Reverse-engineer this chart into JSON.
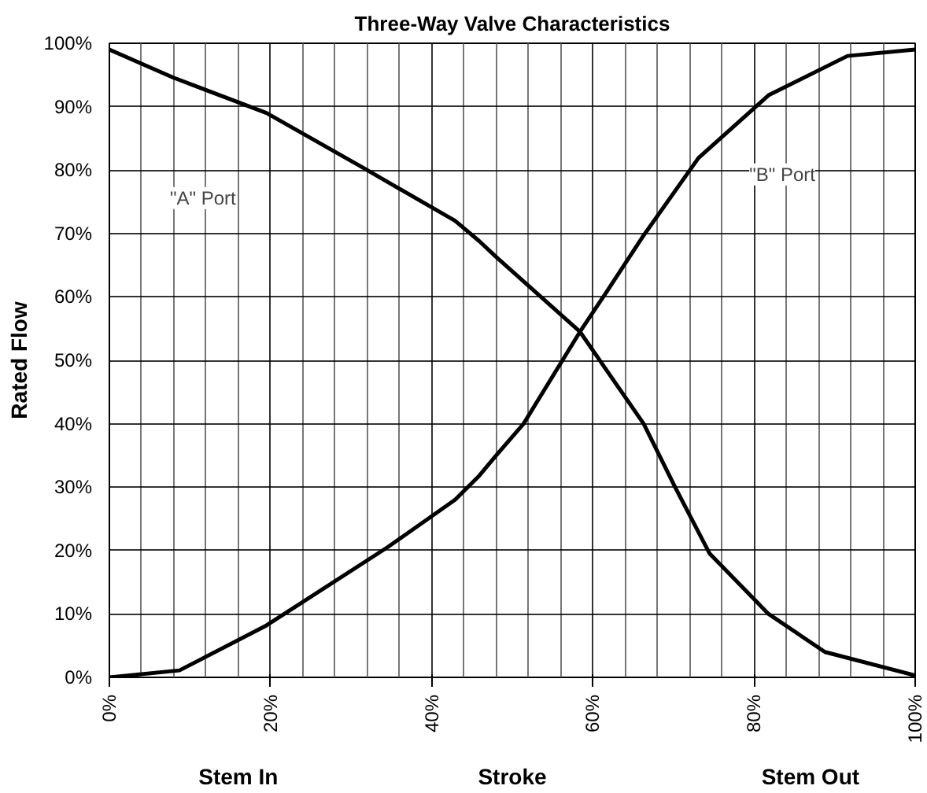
{
  "chart_data": {
    "type": "line",
    "title": "Three-Way Valve Characteristics",
    "xlabel": "Stroke",
    "ylabel": "Rated Flow",
    "series": [
      {
        "color": "#000000",
        "x": [
          0,
          7.9,
          19.5,
          31.3,
          42.9,
          45.9,
          48,
          58.4,
          66.3,
          70.2,
          74.5,
          81.8,
          88.8,
          100
        ],
        "values": [
          99,
          94.6,
          89,
          80.5,
          72,
          68.8,
          66.3,
          54.5,
          40,
          30,
          19.5,
          10,
          4,
          0.3
        ]
      },
      {
        "color": "#000000",
        "x": [
          0,
          8.7,
          19.5,
          34.5,
          42.9,
          45.9,
          48,
          51.4,
          58.4,
          61.6,
          66.3,
          73.1,
          81.8,
          91.6,
          100
        ],
        "values": [
          0,
          1.1,
          8.2,
          20.5,
          28,
          31.8,
          35,
          40,
          54.5,
          60.6,
          69.7,
          81.9,
          91.8,
          98,
          99
        ]
      }
    ],
    "annotations": [
      {
        "text": "\"A\" Port",
        "x": 11.6,
        "y": 75.6
      },
      {
        "text": "\"B\" Port",
        "x": 83.5,
        "y": 79.3
      },
      "Stem In",
      "Stem Out"
    ],
    "xlim": [
      0,
      100
    ],
    "ylim": [
      0,
      100
    ],
    "xticks": [
      {
        "value": 0,
        "label": "0%"
      },
      {
        "value": 20,
        "label": "20%"
      },
      {
        "value": 40,
        "label": "40%"
      },
      {
        "value": 60,
        "label": "60%"
      },
      {
        "value": 80,
        "label": "80%"
      },
      {
        "value": 100,
        "label": "100%"
      }
    ],
    "yticks": [
      {
        "value": 0,
        "label": "0%"
      },
      {
        "value": 10,
        "label": "10%"
      },
      {
        "value": 20,
        "label": "20%"
      },
      {
        "value": 30,
        "label": "30%"
      },
      {
        "value": 40,
        "label": "40%"
      },
      {
        "value": 50,
        "label": "50%"
      },
      {
        "value": 60,
        "label": "60%"
      },
      {
        "value": 70,
        "label": "70%"
      },
      {
        "value": 80,
        "label": "80%"
      },
      {
        "value": 90,
        "label": "90%"
      },
      {
        "value": 100,
        "label": "100%"
      }
    ],
    "grid": true,
    "marker": "none",
    "line_style": "solid"
  }
}
